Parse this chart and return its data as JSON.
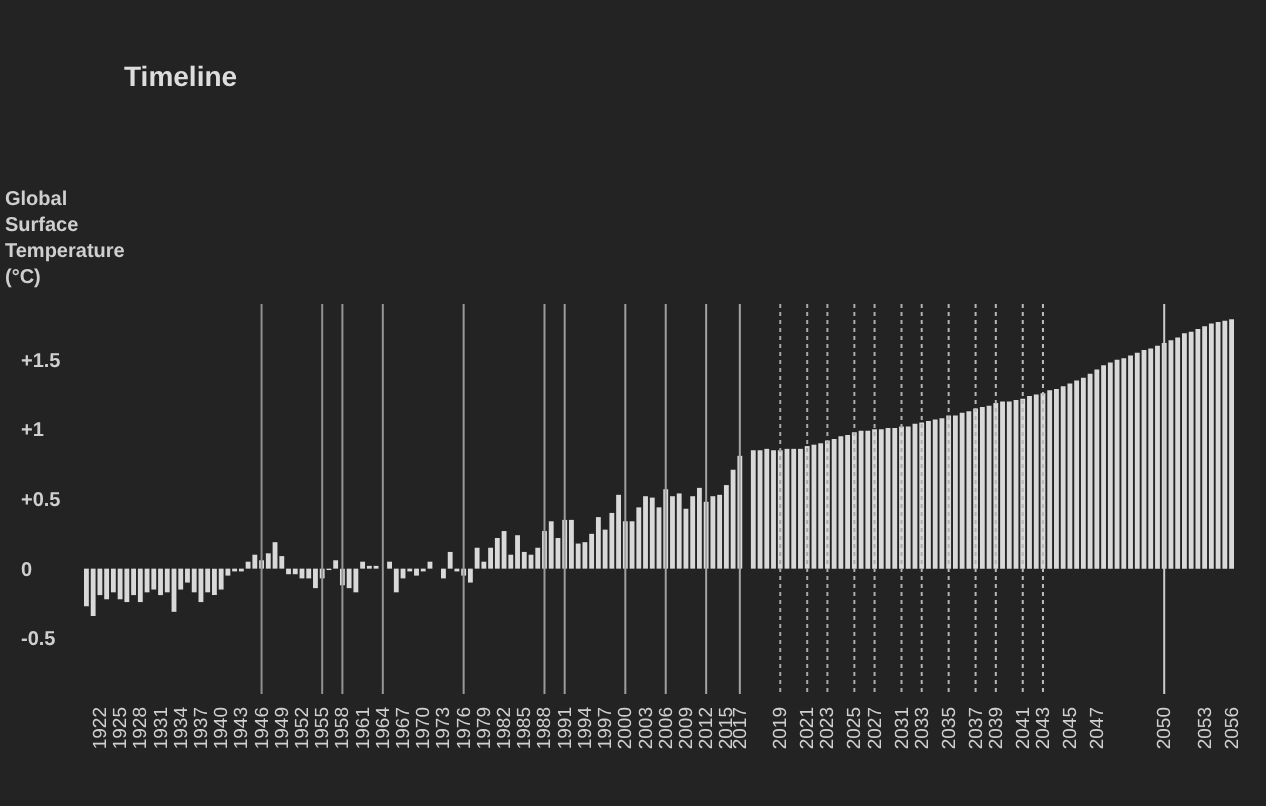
{
  "chart_data": {
    "type": "bar",
    "title": "Timeline",
    "ylabel": "Global Surface Temperature (°C)",
    "categories": [
      null,
      null,
      "1922",
      null,
      null,
      "1925",
      null,
      null,
      "1928",
      null,
      null,
      "1931",
      null,
      null,
      "1934",
      null,
      null,
      "1937",
      null,
      null,
      "1940",
      null,
      null,
      "1943",
      null,
      null,
      "1946",
      null,
      null,
      "1949",
      null,
      null,
      "1952",
      null,
      null,
      "1955",
      null,
      null,
      "1958",
      null,
      null,
      "1961",
      null,
      null,
      "1964",
      null,
      null,
      "1967",
      null,
      null,
      "1970",
      null,
      null,
      "1973",
      null,
      null,
      "1976",
      null,
      null,
      "1979",
      null,
      null,
      "1982",
      null,
      null,
      "1985",
      null,
      null,
      "1988",
      null,
      null,
      "1991",
      null,
      null,
      "1994",
      null,
      null,
      "1997",
      null,
      null,
      "2000",
      null,
      null,
      "2003",
      null,
      null,
      "2006",
      null,
      null,
      "2009",
      null,
      null,
      "2012",
      null,
      null,
      "2015",
      null,
      "2017",
      null,
      null,
      null,
      null,
      null,
      "2019",
      null,
      null,
      null,
      "2021",
      null,
      null,
      "2023",
      null,
      null,
      null,
      "2025",
      null,
      null,
      "2027",
      null,
      null,
      null,
      "2031",
      null,
      null,
      "2033",
      null,
      null,
      null,
      "2035",
      null,
      null,
      null,
      "2037",
      null,
      null,
      "2039",
      null,
      null,
      null,
      "2041",
      null,
      null,
      "2043",
      null,
      null,
      null,
      "2045",
      null,
      null,
      null,
      "2047",
      null,
      null,
      null,
      null,
      null,
      null,
      null,
      null,
      null,
      "2050",
      null,
      null,
      null,
      null,
      null,
      "2053",
      null,
      null,
      null,
      "2056"
    ],
    "series": [
      {
        "color": "#d9d9d9",
        "values": [
          -0.27,
          -0.34,
          -0.19,
          -0.22,
          -0.17,
          -0.22,
          -0.24,
          -0.19,
          -0.24,
          -0.17,
          -0.15,
          -0.19,
          -0.17,
          -0.31,
          -0.15,
          -0.1,
          -0.17,
          -0.24,
          -0.17,
          -0.19,
          -0.15,
          -0.05,
          -0.02,
          -0.02,
          0.05,
          0.1,
          0.06,
          0.11,
          0.19,
          0.09,
          -0.04,
          -0.04,
          -0.07,
          -0.07,
          -0.14,
          -0.07,
          -0.01,
          0.06,
          -0.12,
          -0.14,
          -0.17,
          0.05,
          0.02,
          0.02,
          0.0,
          0.05,
          -0.17,
          -0.07,
          -0.02,
          -0.05,
          -0.02,
          0.05,
          0.0,
          -0.07,
          0.12,
          -0.02,
          -0.05,
          -0.1,
          0.15,
          0.05,
          0.15,
          0.22,
          0.27,
          0.1,
          0.24,
          0.12,
          0.1,
          0.15,
          0.27,
          0.34,
          0.22,
          0.35,
          0.35,
          0.18,
          0.19,
          0.25,
          0.37,
          0.28,
          0.4,
          0.53,
          0.34,
          0.34,
          0.44,
          0.52,
          0.51,
          0.44,
          0.57,
          0.52,
          0.54,
          0.43,
          0.52,
          0.58,
          0.48,
          0.52,
          0.53,
          0.6,
          0.71,
          0.81,
          null,
          0.85,
          0.85,
          0.86,
          0.85,
          0.85,
          0.86,
          0.86,
          0.86,
          0.88,
          0.89,
          0.9,
          0.92,
          0.93,
          0.95,
          0.96,
          0.98,
          0.99,
          0.99,
          1.0,
          1.0,
          1.01,
          1.01,
          1.02,
          1.02,
          1.04,
          1.05,
          1.06,
          1.07,
          1.08,
          1.1,
          1.1,
          1.12,
          1.13,
          1.15,
          1.16,
          1.17,
          1.19,
          1.2,
          1.2,
          1.21,
          1.22,
          1.24,
          1.25,
          1.26,
          1.28,
          1.29,
          1.31,
          1.33,
          1.35,
          1.37,
          1.4,
          1.43,
          1.46,
          1.48,
          1.5,
          1.51,
          1.53,
          1.55,
          1.57,
          1.58,
          1.6,
          1.62,
          1.64,
          1.66,
          1.69,
          1.7,
          1.72,
          1.74,
          1.76,
          1.77,
          1.78,
          1.79
        ]
      }
    ],
    "ylim": [
      -0.9,
      1.9
    ],
    "yticks": [
      {
        "value": -0.5,
        "label": "-0.5"
      },
      {
        "value": 0,
        "label": "0"
      },
      {
        "value": 0.5,
        "label": "+0.5"
      },
      {
        "value": 1,
        "label": "+1"
      },
      {
        "value": 1.5,
        "label": "+1.5"
      }
    ],
    "ref_lines": [
      {
        "axis": "x",
        "value": "1946",
        "color": "#909090",
        "line_style": "solid"
      },
      {
        "axis": "x",
        "value": "1955",
        "color": "#929292",
        "line_style": "solid"
      },
      {
        "axis": "x",
        "value": "1958",
        "color": "#949494",
        "line_style": "solid"
      },
      {
        "axis": "x",
        "value": "1964",
        "color": "#969696",
        "line_style": "solid"
      },
      {
        "axis": "x",
        "value": "1976",
        "color": "#989898",
        "line_style": "solid"
      },
      {
        "axis": "x",
        "value": "1988",
        "color": "#9a9a9a",
        "line_style": "solid"
      },
      {
        "axis": "x",
        "value": "1991",
        "color": "#9c9c9c",
        "line_style": "solid"
      },
      {
        "axis": "x",
        "value": "2000",
        "color": "#9e9e9e",
        "line_style": "solid"
      },
      {
        "axis": "x",
        "value": "2006",
        "color": "#a0a0a0",
        "line_style": "solid"
      },
      {
        "axis": "x",
        "value": "2012",
        "color": "#a2a2a2",
        "line_style": "solid"
      },
      {
        "axis": "x",
        "value": "2017",
        "color": "#a4a4a4",
        "line_style": "solid"
      },
      {
        "axis": "x",
        "value": "2019",
        "color": "#a6a6a6",
        "line_style": "dotted"
      },
      {
        "axis": "x",
        "value": "2021",
        "color": "#a8a8a8",
        "line_style": "dotted"
      },
      {
        "axis": "x",
        "value": "2023",
        "color": "#aaaaaa",
        "line_style": "dotted"
      },
      {
        "axis": "x",
        "value": "2025",
        "color": "#acacac",
        "line_style": "dotted"
      },
      {
        "axis": "x",
        "value": "2027",
        "color": "#aeaeae",
        "line_style": "dotted"
      },
      {
        "axis": "x",
        "value": "2031",
        "color": "#b0b0b0",
        "line_style": "dotted"
      },
      {
        "axis": "x",
        "value": "2033",
        "color": "#b2b2b2",
        "line_style": "dotted"
      },
      {
        "axis": "x",
        "value": "2035",
        "color": "#b4b4b4",
        "line_style": "dotted"
      },
      {
        "axis": "x",
        "value": "2037",
        "color": "#b6b6b6",
        "line_style": "dotted"
      },
      {
        "axis": "x",
        "value": "2039",
        "color": "#b8b8b8",
        "line_style": "dotted"
      },
      {
        "axis": "x",
        "value": "2041",
        "color": "#bababa",
        "line_style": "dotted"
      },
      {
        "axis": "x",
        "value": "2043",
        "color": "#bcbcbc",
        "line_style": "dotted"
      },
      {
        "axis": "x",
        "value": "2050",
        "color": "#cccccc",
        "line_style": "solid"
      }
    ]
  }
}
